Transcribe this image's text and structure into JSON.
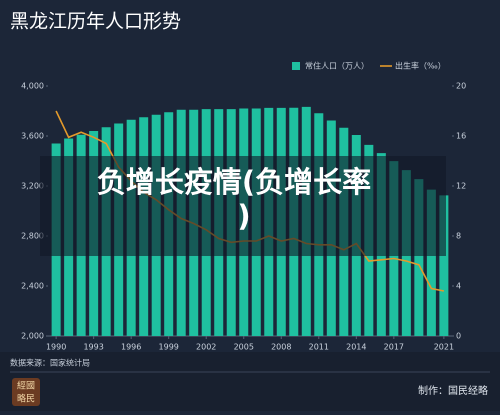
{
  "chart_data": {
    "type": "bar_line",
    "title": "黑龙江历年人口形势",
    "overlay_lines": [
      "负增长疫情(负增长率",
      ")"
    ],
    "x": [
      1990,
      1991,
      1992,
      1993,
      1994,
      1995,
      1996,
      1997,
      1998,
      1999,
      2000,
      2001,
      2002,
      2003,
      2004,
      2005,
      2006,
      2007,
      2008,
      2009,
      2010,
      2011,
      2012,
      2013,
      2014,
      2015,
      2016,
      2017,
      2018,
      2019,
      2020,
      2021
    ],
    "xlim": [
      1989.35,
      2021.65
    ],
    "xticks": [
      1990,
      1993,
      1996,
      1999,
      2002,
      2005,
      2008,
      2011,
      2014,
      2017,
      2021
    ],
    "series": [
      {
        "name": "常住人口（万人）",
        "color": "#1fc0a0",
        "values": [
          3540,
          3580,
          3610,
          3640,
          3670,
          3700,
          3730,
          3750,
          3770,
          3790,
          3810,
          3810,
          3815,
          3815,
          3815,
          3820,
          3820,
          3825,
          3825,
          3826,
          3833,
          3782,
          3724,
          3666,
          3608,
          3529,
          3463,
          3399,
          3327,
          3255,
          3171,
          3125
        ]
      },
      {
        "name": "出生率（‰）",
        "color": "#e39a2b",
        "axis": "y2",
        "values": [
          18.0,
          15.9,
          16.3,
          15.9,
          15.4,
          13.5,
          12.4,
          11.5,
          10.9,
          10.1,
          9.4,
          9.0,
          8.5,
          7.8,
          7.5,
          7.6,
          7.6,
          8.0,
          7.6,
          7.8,
          7.4,
          7.3,
          7.3,
          6.9,
          7.4,
          6.0,
          6.1,
          6.2,
          6.0,
          5.7,
          3.8,
          3.6
        ]
      }
    ],
    "ylim": [
      2000,
      4000
    ],
    "yticks": [
      {
        "value": 2000,
        "label": "2,000"
      },
      {
        "value": 2400,
        "label": "2,400"
      },
      {
        "value": 2800,
        "label": "2,800"
      },
      {
        "value": 3200,
        "label": "3,200"
      },
      {
        "value": 3600,
        "label": "3,600"
      },
      {
        "value": 4000,
        "label": "4,000"
      }
    ],
    "y2lim": [
      0,
      20
    ],
    "y2ticks": [
      0,
      4,
      8,
      12,
      16,
      20
    ],
    "grid": false,
    "legend": "top-right",
    "source": "数据来源：国家统计局",
    "credit": "制作：国民经略",
    "logo_lines": [
      "經國",
      "略民"
    ]
  }
}
